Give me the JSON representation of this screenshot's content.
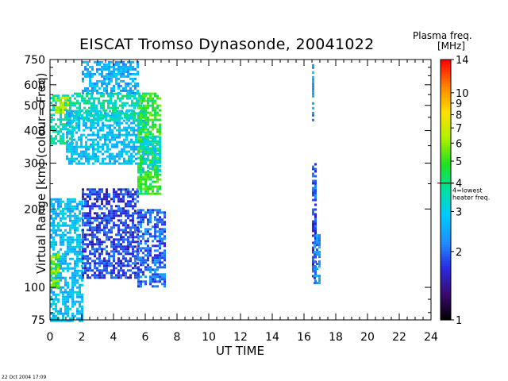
{
  "chart_data": {
    "type": "heatmap",
    "title": "EISCAT Tromso Dynasonde,  20041022",
    "xlabel": "UT TIME",
    "ylabel": "Virtual Range  [km]    (colour= Freq)",
    "xlim": [
      0,
      24
    ],
    "ylim": [
      75,
      750
    ],
    "yscale": "log",
    "x_ticks": [
      "0",
      "2",
      "4",
      "6",
      "8",
      "10",
      "12",
      "14",
      "16",
      "18",
      "20",
      "22",
      "24"
    ],
    "y_ticks": [
      "75",
      "100",
      "200",
      "300",
      "400",
      "500",
      "600",
      "750"
    ],
    "colorbar": {
      "title_line1": "Plasma freq.",
      "title_line2": "[MHz]",
      "scale": "log",
      "range": [
        1,
        14
      ],
      "ticks": [
        "1",
        "2",
        "3",
        "4",
        "5",
        "6",
        "7",
        "8",
        "9",
        "10",
        "14"
      ],
      "marker_value": 4,
      "marker_label_line1": "4=lowest",
      "marker_label_line2": "heater freq.",
      "colors": [
        "#000000",
        "#3a0a6e",
        "#2a2ae0",
        "#1e90ff",
        "#00c8ff",
        "#00e0a0",
        "#20e020",
        "#b0f000",
        "#ffe000",
        "#ff8000",
        "#ff0000"
      ]
    },
    "series": [
      {
        "x_start": 0.0,
        "x_end": 2.0,
        "y_min": 75,
        "y_max": 220,
        "freq_mhz": 2.8
      },
      {
        "x_start": 0.0,
        "x_end": 0.5,
        "y_min": 100,
        "y_max": 135,
        "freq_mhz": 5.5
      },
      {
        "x_start": 0.0,
        "x_end": 1.5,
        "y_min": 360,
        "y_max": 550,
        "freq_mhz": 3.5
      },
      {
        "x_start": 0.3,
        "x_end": 1.2,
        "y_min": 470,
        "y_max": 540,
        "freq_mhz": 6.5
      },
      {
        "x_start": 1.0,
        "x_end": 6.0,
        "y_min": 300,
        "y_max": 480,
        "freq_mhz": 2.8
      },
      {
        "x_start": 1.5,
        "x_end": 6.0,
        "y_min": 440,
        "y_max": 560,
        "freq_mhz": 3.6
      },
      {
        "x_start": 2.0,
        "x_end": 5.5,
        "y_min": 560,
        "y_max": 740,
        "freq_mhz": 2.6
      },
      {
        "x_start": 2.0,
        "x_end": 5.5,
        "y_min": 110,
        "y_max": 240,
        "freq_mhz": 1.8
      },
      {
        "x_start": 5.5,
        "x_end": 7.0,
        "y_min": 230,
        "y_max": 560,
        "freq_mhz": 4.8
      },
      {
        "x_start": 5.8,
        "x_end": 7.0,
        "y_min": 280,
        "y_max": 380,
        "freq_mhz": 3.2
      },
      {
        "x_start": 5.5,
        "x_end": 7.2,
        "y_min": 100,
        "y_max": 200,
        "freq_mhz": 2.0
      },
      {
        "x_start": 16.5,
        "x_end": 16.7,
        "y_min": 105,
        "y_max": 300,
        "freq_mhz": 1.9
      },
      {
        "x_start": 16.5,
        "x_end": 16.6,
        "y_min": 440,
        "y_max": 720,
        "freq_mhz": 2.5
      },
      {
        "x_start": 16.6,
        "x_end": 17.0,
        "y_min": 105,
        "y_max": 160,
        "freq_mhz": 2.3
      }
    ],
    "grid": false,
    "legend": "right"
  },
  "footer": "22 Oct 2004 17:09"
}
